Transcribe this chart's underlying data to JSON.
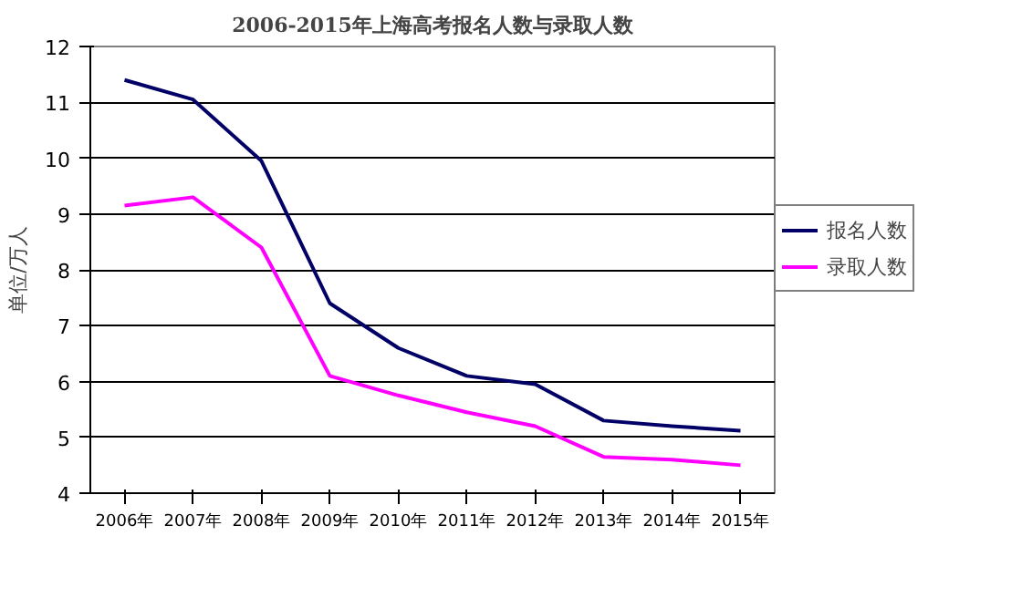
{
  "chart_data": {
    "type": "line",
    "title": "2006-2015年上海高考报名人数与录取人数",
    "ylabel": "单位/万人",
    "categories": [
      "2006年",
      "2007年",
      "2008年",
      "2009年",
      "2010年",
      "2011年",
      "2012年",
      "2013年",
      "2014年",
      "2015年"
    ],
    "series": [
      {
        "name": "报名人数",
        "color": "#000066",
        "values": [
          11.4,
          11.05,
          9.95,
          7.4,
          6.6,
          6.1,
          5.95,
          5.3,
          5.2,
          5.12
        ]
      },
      {
        "name": "录取人数",
        "color": "#ff00ff",
        "values": [
          9.15,
          9.3,
          8.4,
          6.1,
          5.75,
          5.45,
          5.2,
          4.65,
          4.6,
          4.5
        ]
      }
    ],
    "ylim": [
      4,
      12
    ],
    "yticks": [
      4,
      5,
      6,
      7,
      8,
      9,
      10,
      11,
      12
    ],
    "grid": "y",
    "legend": "right",
    "marker": "none",
    "line_style": "solid"
  }
}
